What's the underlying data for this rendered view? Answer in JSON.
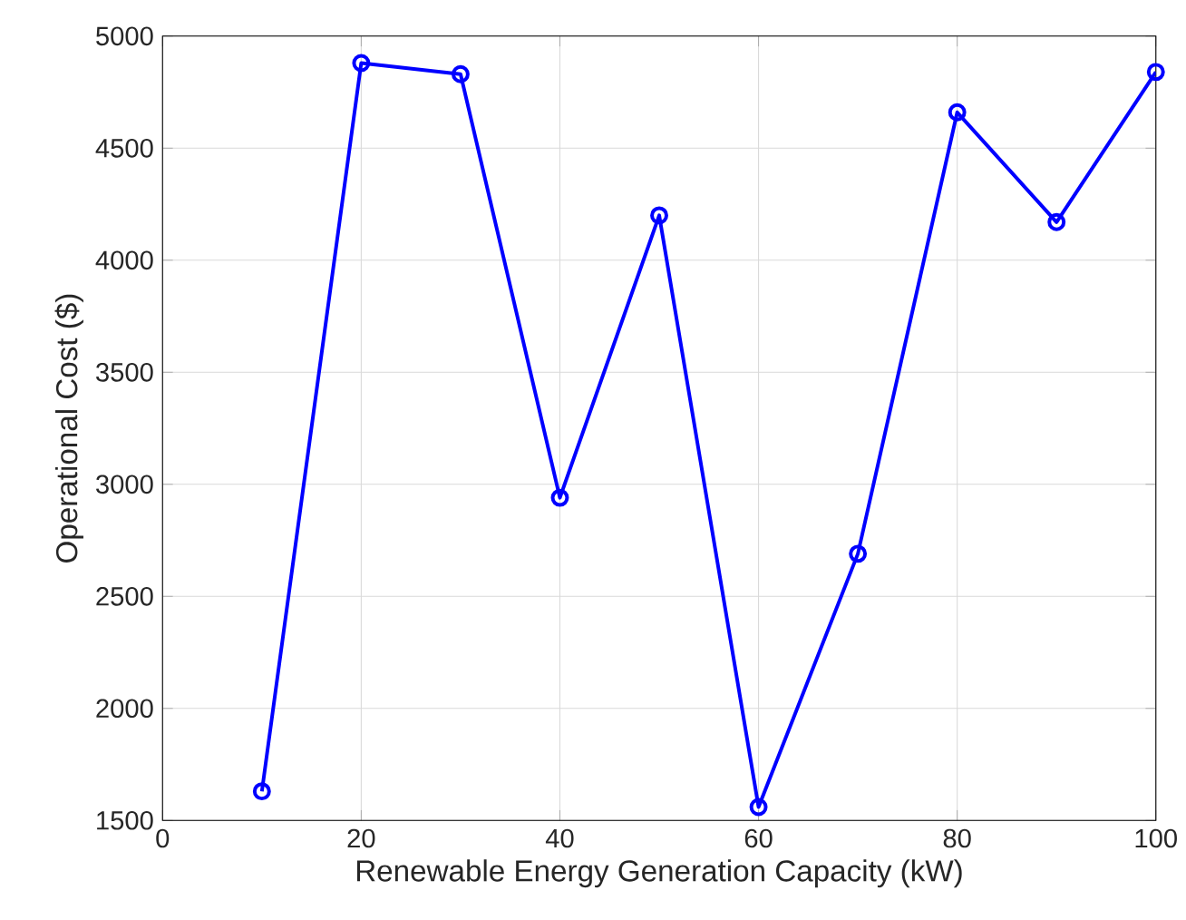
{
  "chart_data": {
    "type": "line",
    "xlabel": "Renewable Energy Generation Capacity (kW)",
    "ylabel": "Operational Cost ($)",
    "x": [
      10,
      20,
      30,
      40,
      50,
      60,
      70,
      80,
      90,
      100
    ],
    "series": [
      {
        "color": "#0000ff",
        "values": [
          1630,
          4880,
          4830,
          2940,
          4200,
          1560,
          2690,
          4660,
          4170,
          4840
        ]
      }
    ],
    "xlim": [
      0,
      100
    ],
    "ylim": [
      1500,
      5000
    ],
    "xticks": [
      0,
      20,
      40,
      60,
      80,
      100
    ],
    "yticks": [
      1500,
      2000,
      2500,
      3000,
      3500,
      4000,
      4500,
      5000
    ],
    "grid": true,
    "marker": "circle",
    "line_style": "solid"
  }
}
